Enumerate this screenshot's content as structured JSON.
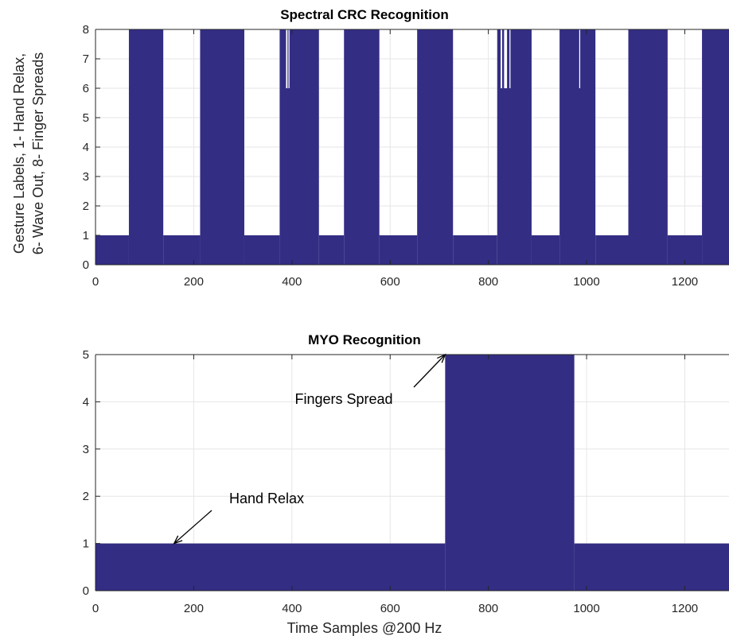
{
  "chart_data": [
    {
      "type": "area",
      "title": "Spectral CRC Recognition",
      "ylabel": [
        "Gesture Labels, 1- Hand Relax,",
        "6- Wave Out, 8- Finger Spreads"
      ],
      "xlabel": "",
      "xlim": [
        0,
        1290
      ],
      "ylim": [
        0,
        8
      ],
      "xticks": [
        0,
        200,
        400,
        600,
        800,
        1000,
        1200
      ],
      "yticks": [
        0,
        1,
        2,
        3,
        4,
        5,
        6,
        7,
        8
      ],
      "grid": true,
      "fill_color": "#332D84",
      "segments": [
        {
          "x0": 0,
          "x1": 68,
          "value": 1
        },
        {
          "x0": 68,
          "x1": 138,
          "value": 8
        },
        {
          "x0": 138,
          "x1": 213,
          "value": 1
        },
        {
          "x0": 213,
          "x1": 303,
          "value": 8
        },
        {
          "x0": 303,
          "x1": 375,
          "value": 1
        },
        {
          "x0": 375,
          "x1": 455,
          "value": 8
        },
        {
          "x0": 455,
          "x1": 506,
          "value": 1
        },
        {
          "x0": 506,
          "x1": 578,
          "value": 8
        },
        {
          "x0": 578,
          "x1": 655,
          "value": 1
        },
        {
          "x0": 655,
          "x1": 728,
          "value": 8
        },
        {
          "x0": 728,
          "x1": 818,
          "value": 1
        },
        {
          "x0": 818,
          "x1": 888,
          "value": 8
        },
        {
          "x0": 888,
          "x1": 945,
          "value": 1
        },
        {
          "x0": 945,
          "x1": 1018,
          "value": 8
        },
        {
          "x0": 1018,
          "x1": 1085,
          "value": 1
        },
        {
          "x0": 1085,
          "x1": 1165,
          "value": 8
        },
        {
          "x0": 1165,
          "x1": 1235,
          "value": 1
        },
        {
          "x0": 1235,
          "x1": 1290,
          "value": 8
        }
      ],
      "dips": [
        {
          "x0": 388,
          "x1": 391,
          "value": 6
        },
        {
          "x0": 393,
          "x1": 395,
          "value": 6
        },
        {
          "x0": 825,
          "x1": 828,
          "value": 6
        },
        {
          "x0": 832,
          "x1": 838,
          "value": 6
        },
        {
          "x0": 843,
          "x1": 845,
          "value": 6
        },
        {
          "x0": 985,
          "x1": 987,
          "value": 6
        }
      ]
    },
    {
      "type": "area",
      "title": "MYO Recognition",
      "xlabel": "Time Samples @200 Hz",
      "ylabel": "",
      "xlim": [
        0,
        1290
      ],
      "ylim": [
        0,
        5
      ],
      "xticks": [
        0,
        200,
        400,
        600,
        800,
        1000,
        1200
      ],
      "yticks": [
        0,
        1,
        2,
        3,
        4,
        5
      ],
      "grid": true,
      "fill_color": "#332D84",
      "segments": [
        {
          "x0": 0,
          "x1": 712,
          "value": 1
        },
        {
          "x0": 712,
          "x1": 975,
          "value": 5
        },
        {
          "x0": 975,
          "x1": 1290,
          "value": 1
        }
      ],
      "annotations": [
        {
          "text": "Fingers Spread",
          "x": 712,
          "y": 5
        },
        {
          "text": "Hand Relax",
          "x": 160,
          "y": 1
        }
      ]
    }
  ]
}
